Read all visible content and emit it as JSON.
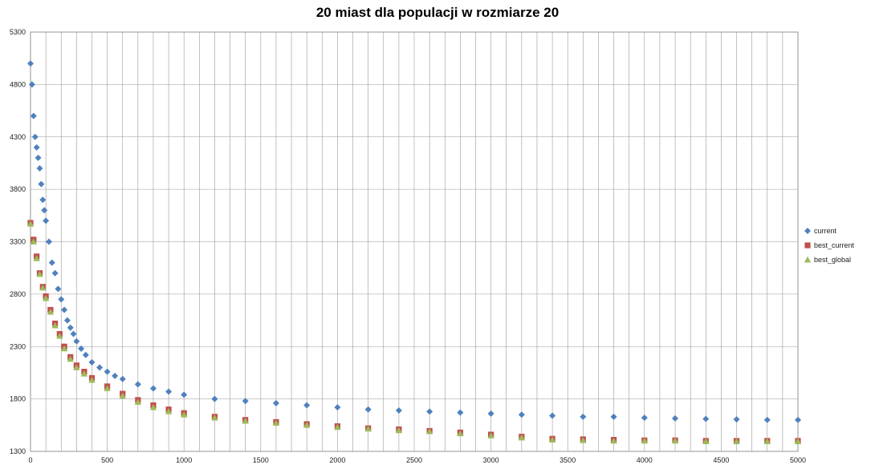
{
  "chart_data": {
    "type": "scatter",
    "title": "20 miast dla populacji w rozmiarze 20",
    "xlabel": "",
    "ylabel": "",
    "xlim": [
      0,
      5000
    ],
    "ylim": [
      1300,
      5300
    ],
    "x_ticks": [
      0,
      500,
      1000,
      1500,
      2000,
      2500,
      3000,
      3500,
      4000,
      4500,
      5000
    ],
    "y_ticks": [
      1300,
      1800,
      2300,
      2800,
      3300,
      3800,
      4300,
      4800,
      5300
    ],
    "x_minor_step": 100,
    "grid": true,
    "legend_position": "right",
    "series": [
      {
        "name": "current",
        "marker": "diamond",
        "color": "#4F81BD",
        "x": [
          0,
          10,
          20,
          30,
          40,
          50,
          60,
          70,
          80,
          90,
          100,
          120,
          140,
          160,
          180,
          200,
          220,
          240,
          260,
          280,
          300,
          330,
          360,
          400,
          450,
          500,
          550,
          600,
          700,
          800,
          900,
          1000,
          1200,
          1400,
          1600,
          1800,
          2000,
          2200,
          2400,
          2600,
          2800,
          3000,
          3200,
          3400,
          3600,
          3800,
          4000,
          4200,
          4400,
          4600,
          4800,
          5000
        ],
        "values": [
          5000,
          4800,
          4500,
          4300,
          4200,
          4100,
          4000,
          3850,
          3700,
          3600,
          3500,
          3300,
          3100,
          3000,
          2850,
          2750,
          2650,
          2550,
          2480,
          2420,
          2350,
          2280,
          2220,
          2150,
          2100,
          2060,
          2020,
          1990,
          1940,
          1900,
          1870,
          1840,
          1800,
          1780,
          1760,
          1740,
          1720,
          1700,
          1690,
          1680,
          1670,
          1660,
          1650,
          1640,
          1630,
          1630,
          1620,
          1615,
          1610,
          1605,
          1600,
          1600
        ]
      },
      {
        "name": "best_current",
        "marker": "square",
        "color": "#C0504D",
        "x": [
          0,
          20,
          40,
          60,
          80,
          100,
          130,
          160,
          190,
          220,
          260,
          300,
          350,
          400,
          500,
          600,
          700,
          800,
          900,
          1000,
          1200,
          1400,
          1600,
          1800,
          2000,
          2200,
          2400,
          2600,
          2800,
          3000,
          3200,
          3400,
          3600,
          3800,
          4000,
          4200,
          4400,
          4600,
          4800,
          5000
        ],
        "values": [
          3480,
          3320,
          3160,
          3000,
          2870,
          2780,
          2650,
          2520,
          2420,
          2300,
          2200,
          2120,
          2060,
          2000,
          1920,
          1850,
          1790,
          1740,
          1700,
          1665,
          1630,
          1600,
          1580,
          1560,
          1540,
          1520,
          1510,
          1495,
          1480,
          1460,
          1440,
          1420,
          1415,
          1410,
          1405,
          1405,
          1400,
          1400,
          1400,
          1400
        ]
      },
      {
        "name": "best_global",
        "marker": "triangle",
        "color": "#9BBB59",
        "x": [
          0,
          20,
          40,
          60,
          80,
          100,
          130,
          160,
          190,
          220,
          260,
          300,
          350,
          400,
          500,
          600,
          700,
          800,
          900,
          1000,
          1200,
          1400,
          1600,
          1800,
          2000,
          2200,
          2400,
          2600,
          2800,
          3000,
          3200,
          3400,
          3600,
          3800,
          4000,
          4200,
          4400,
          4600,
          4800,
          5000
        ],
        "values": [
          3470,
          3300,
          3140,
          2990,
          2860,
          2760,
          2630,
          2500,
          2400,
          2280,
          2180,
          2100,
          2040,
          1980,
          1900,
          1830,
          1770,
          1720,
          1680,
          1650,
          1620,
          1590,
          1570,
          1550,
          1530,
          1515,
          1500,
          1490,
          1470,
          1450,
          1430,
          1410,
          1405,
          1400,
          1400,
          1400,
          1395,
          1395,
          1395,
          1395
        ]
      }
    ]
  }
}
